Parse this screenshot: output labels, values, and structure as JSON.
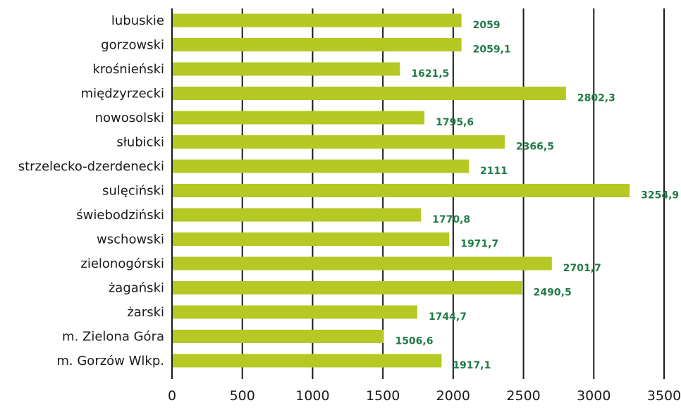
{
  "chart_data": {
    "type": "bar",
    "orientation": "horizontal",
    "categories": [
      "lubuskie",
      "gorzowski",
      "krośnieński",
      "międzyrzecki",
      "nowosolski",
      "słubicki",
      "strzelecko-dzerdenecki",
      "sulęciński",
      "świebodziński",
      "wschowski",
      "zielonogórski",
      "żagański",
      "żarski",
      "m. Zielona Góra",
      "m. Gorzów Wlkp."
    ],
    "values": [
      2059,
      2059.1,
      1621.5,
      2802.3,
      1795.6,
      2366.5,
      2111,
      3254.9,
      1770.8,
      1971.7,
      2701.7,
      2490.5,
      1744.7,
      1506.6,
      1917.1
    ],
    "value_labels": [
      "2059",
      "2059,1",
      "1621,5",
      "2802,3",
      "1795,6",
      "2366,5",
      "2111",
      "3254,9",
      "1770,8",
      "1971,7",
      "2701,7",
      "2490,5",
      "1744,7",
      "1506,6",
      "1917,1"
    ],
    "xlim": [
      0,
      3500
    ],
    "x_ticks": [
      0,
      500,
      1000,
      1500,
      2000,
      2500,
      3000,
      3500
    ],
    "x_tick_labels": [
      "0",
      "500",
      "1000",
      "1500",
      "2000",
      "2500",
      "3000",
      "3500"
    ],
    "grid": "vertical",
    "bar_color": "#b5c823",
    "label_color": "#217a47",
    "grid_color": "#1a1a1a",
    "title": "",
    "xlabel": "",
    "ylabel": ""
  }
}
